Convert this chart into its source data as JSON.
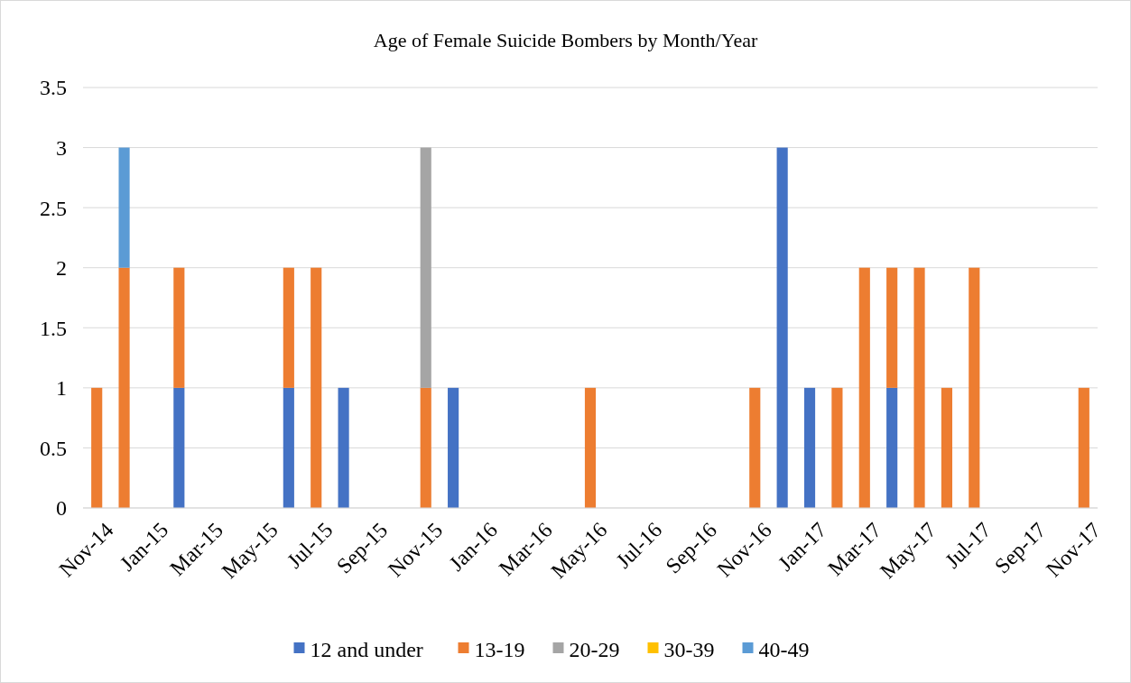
{
  "chart_data": {
    "type": "bar",
    "title": "Age of Female Suicide Bombers by Month/Year",
    "stacked": true,
    "grid": "y",
    "legend": "bottom",
    "categories": [
      "Nov-14",
      null,
      "Jan-15",
      null,
      "Mar-15",
      null,
      "May-15",
      null,
      "Jul-15",
      null,
      "Sep-15",
      null,
      "Nov-15",
      null,
      "Jan-16",
      null,
      "Mar-16",
      null,
      "May-16",
      null,
      "Jul-16",
      null,
      "Sep-16",
      null,
      "Nov-16",
      null,
      "Jan-17",
      null,
      "Mar-17",
      null,
      "May-17",
      null,
      "Jul-17",
      null,
      "Sep-17",
      null,
      "Nov-17"
    ],
    "ylim": [
      0,
      3.5
    ],
    "yticks": [
      0,
      0.5,
      1,
      1.5,
      2,
      2.5,
      3,
      3.5
    ],
    "series": [
      {
        "name": "12 and under",
        "color": "#4472c4",
        "values": [
          0,
          0,
          0,
          1,
          0,
          0,
          0,
          1,
          0,
          1,
          0,
          0,
          0,
          1,
          0,
          0,
          0,
          0,
          0,
          0,
          0,
          0,
          0,
          0,
          0,
          3,
          1,
          0,
          0,
          1,
          0,
          0,
          0,
          0,
          0,
          0,
          0
        ]
      },
      {
        "name": "13-19",
        "color": "#ed7d31",
        "values": [
          1,
          2,
          0,
          1,
          0,
          0,
          0,
          1,
          2,
          0,
          0,
          0,
          1,
          0,
          0,
          0,
          0,
          0,
          1,
          0,
          0,
          0,
          0,
          0,
          1,
          0,
          0,
          1,
          2,
          1,
          2,
          1,
          2,
          0,
          0,
          0,
          1
        ]
      },
      {
        "name": "20-29",
        "color": "#a5a5a5",
        "values": [
          0,
          0,
          0,
          0,
          0,
          0,
          0,
          0,
          0,
          0,
          0,
          0,
          2,
          0,
          0,
          0,
          0,
          0,
          0,
          0,
          0,
          0,
          0,
          0,
          0,
          0,
          0,
          0,
          0,
          0,
          0,
          0,
          0,
          0,
          0,
          0,
          0
        ]
      },
      {
        "name": "30-39",
        "color": "#ffc000",
        "values": [
          0,
          0,
          0,
          0,
          0,
          0,
          0,
          0,
          0,
          0,
          0,
          0,
          0,
          0,
          0,
          0,
          0,
          0,
          0,
          0,
          0,
          0,
          0,
          0,
          0,
          0,
          0,
          0,
          0,
          0,
          0,
          0,
          0,
          0,
          0,
          0,
          0
        ]
      },
      {
        "name": "40-49",
        "color": "#5b9bd5",
        "values": [
          0,
          1,
          0,
          0,
          0,
          0,
          0,
          0,
          0,
          0,
          0,
          0,
          0,
          0,
          0,
          0,
          0,
          0,
          0,
          0,
          0,
          0,
          0,
          0,
          0,
          0,
          0,
          0,
          0,
          0,
          0,
          0,
          0,
          0,
          0,
          0,
          0
        ]
      }
    ]
  }
}
